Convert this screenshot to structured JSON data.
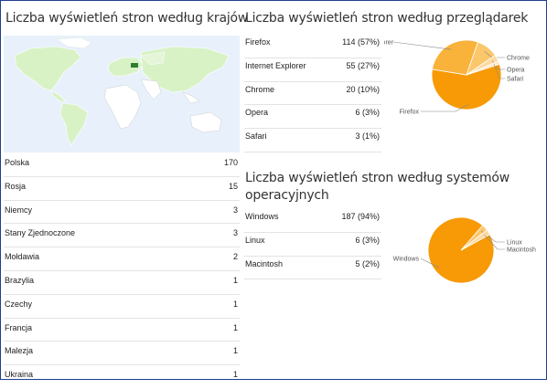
{
  "countries": {
    "heading": "Liczba wyświetleń stron według krajów",
    "rows": [
      {
        "name": "Polska",
        "value": "170"
      },
      {
        "name": "Rosja",
        "value": "15"
      },
      {
        "name": "Niemcy",
        "value": "3"
      },
      {
        "name": "Stany Zjednoczone",
        "value": "3"
      },
      {
        "name": "Mołdawia",
        "value": "2"
      },
      {
        "name": "Brazylia",
        "value": "1"
      },
      {
        "name": "Czechy",
        "value": "1"
      },
      {
        "name": "Francja",
        "value": "1"
      },
      {
        "name": "Malezja",
        "value": "1"
      },
      {
        "name": "Ukraina",
        "value": "1"
      }
    ]
  },
  "browsers": {
    "heading": "Liczba wyświetleń stron według przeglądarek",
    "rows": [
      {
        "name": "Firefox",
        "value": "114 (57%)"
      },
      {
        "name": "Internet Explorer",
        "value": "55 (27%)"
      },
      {
        "name": "Chrome",
        "value": "20 (10%)"
      },
      {
        "name": "Opera",
        "value": "6 (3%)"
      },
      {
        "name": "Safari",
        "value": "3 (1%)"
      }
    ],
    "pie_labels": [
      "Firefox",
      "Internet Explorer",
      "Chrome",
      "Opera",
      "Safari"
    ]
  },
  "os": {
    "heading_line1": "Liczba wyświetleń stron według systemów",
    "heading_line2": "operacyjnych",
    "rows": [
      {
        "name": "Windows",
        "value": "187 (94%)"
      },
      {
        "name": "Linux",
        "value": "6 (3%)"
      },
      {
        "name": "Macintosh",
        "value": "5 (2%)"
      }
    ],
    "pie_labels": [
      "Windows",
      "Linux",
      "Macintosh"
    ]
  },
  "chart_data": [
    {
      "type": "pie",
      "categories": [
        "Firefox",
        "Internet Explorer",
        "Chrome",
        "Opera",
        "Safari"
      ],
      "values": [
        114,
        55,
        20,
        6,
        3
      ]
    },
    {
      "type": "pie",
      "categories": [
        "Windows",
        "Linux",
        "Macintosh"
      ],
      "values": [
        187,
        6,
        5
      ]
    }
  ],
  "colors": {
    "slice_main": "#f79a06",
    "slice_2": "#f9b23a",
    "slice_3": "#fbc76b",
    "slice_4": "#fdd9a0",
    "slice_5": "#fee8c6",
    "map_highlight": "#2e7d32",
    "map_land": "#d8f2c6",
    "map_water": "#e8f1fb"
  }
}
